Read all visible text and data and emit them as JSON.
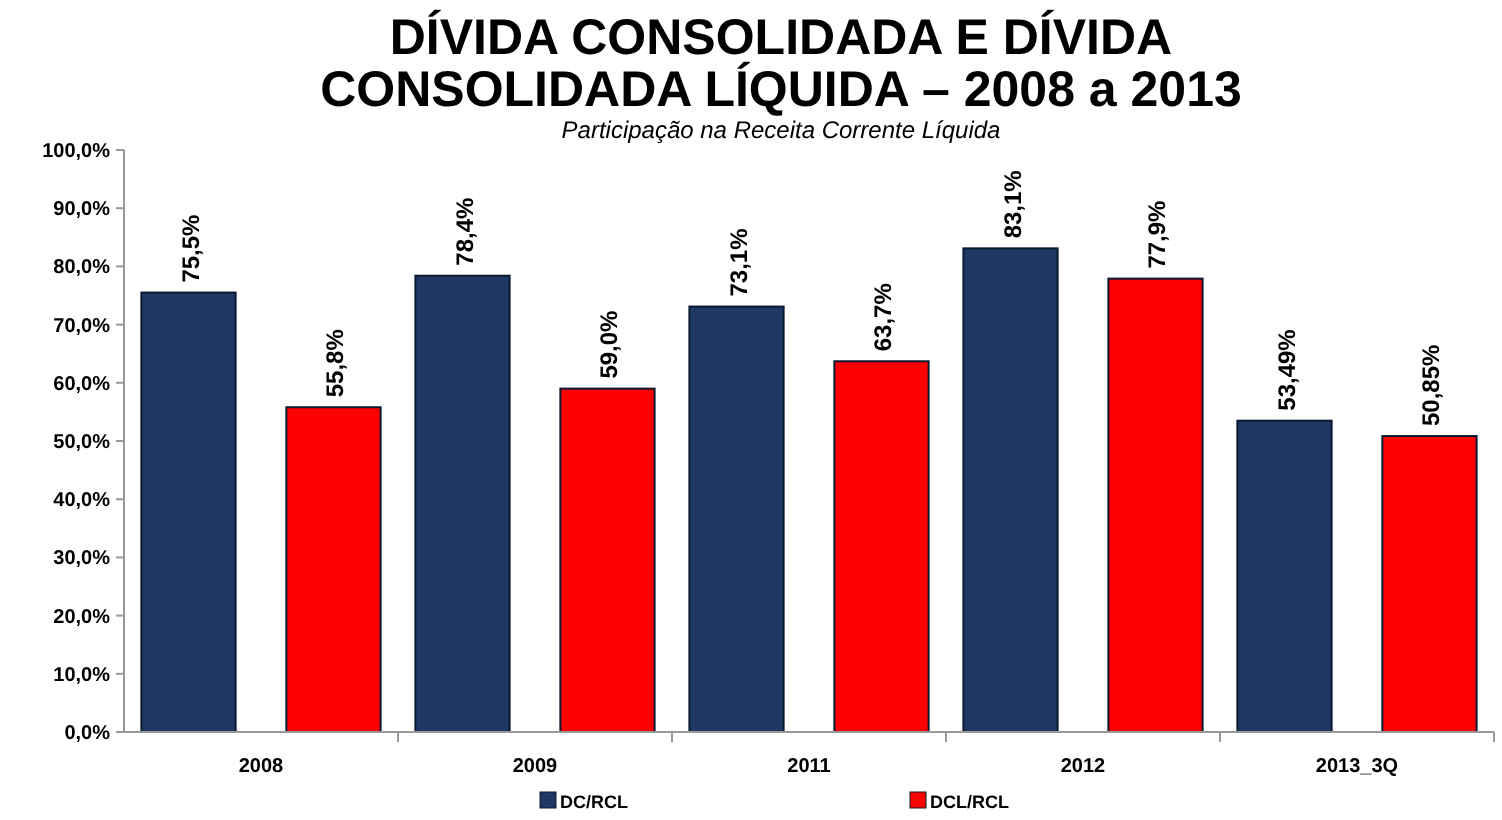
{
  "chart_data": {
    "type": "bar",
    "title": "DÍVIDA CONSOLIDADA E DÍVIDA CONSOLIDADA LÍQUIDA – 2008 a 2013",
    "subtitle": "Participação na Receita Corrente Líquida",
    "categories": [
      "2008",
      "2009",
      "2011",
      "2012",
      "2013_3Q"
    ],
    "series": [
      {
        "name": "DC/RCL",
        "color": "#1f3864",
        "values": [
          75.5,
          78.4,
          73.1,
          83.1,
          53.49
        ],
        "value_labels": [
          "75,5%",
          "78,4%",
          "73,1%",
          "83,1%",
          "53,49%"
        ]
      },
      {
        "name": "DCL/RCL",
        "color": "#ff0000",
        "values": [
          55.8,
          59.0,
          63.7,
          77.9,
          50.85
        ],
        "value_labels": [
          "55,8%",
          "59,0%",
          "63,7%",
          "77,9%",
          "50,85%"
        ]
      }
    ],
    "ylim": [
      0,
      100
    ],
    "yticks": [
      {
        "value": 0,
        "label": "0,0%"
      },
      {
        "value": 10,
        "label": "10,0%"
      },
      {
        "value": 20,
        "label": "20,0%"
      },
      {
        "value": 30,
        "label": "30,0%"
      },
      {
        "value": 40,
        "label": "40,0%"
      },
      {
        "value": 50,
        "label": "50,0%"
      },
      {
        "value": 60,
        "label": "60,0%"
      },
      {
        "value": 70,
        "label": "70,0%"
      },
      {
        "value": 80,
        "label": "80,0%"
      },
      {
        "value": 90,
        "label": "90,0%"
      },
      {
        "value": 100,
        "label": "100,0%"
      }
    ],
    "grid": false,
    "legend": "bottom"
  }
}
